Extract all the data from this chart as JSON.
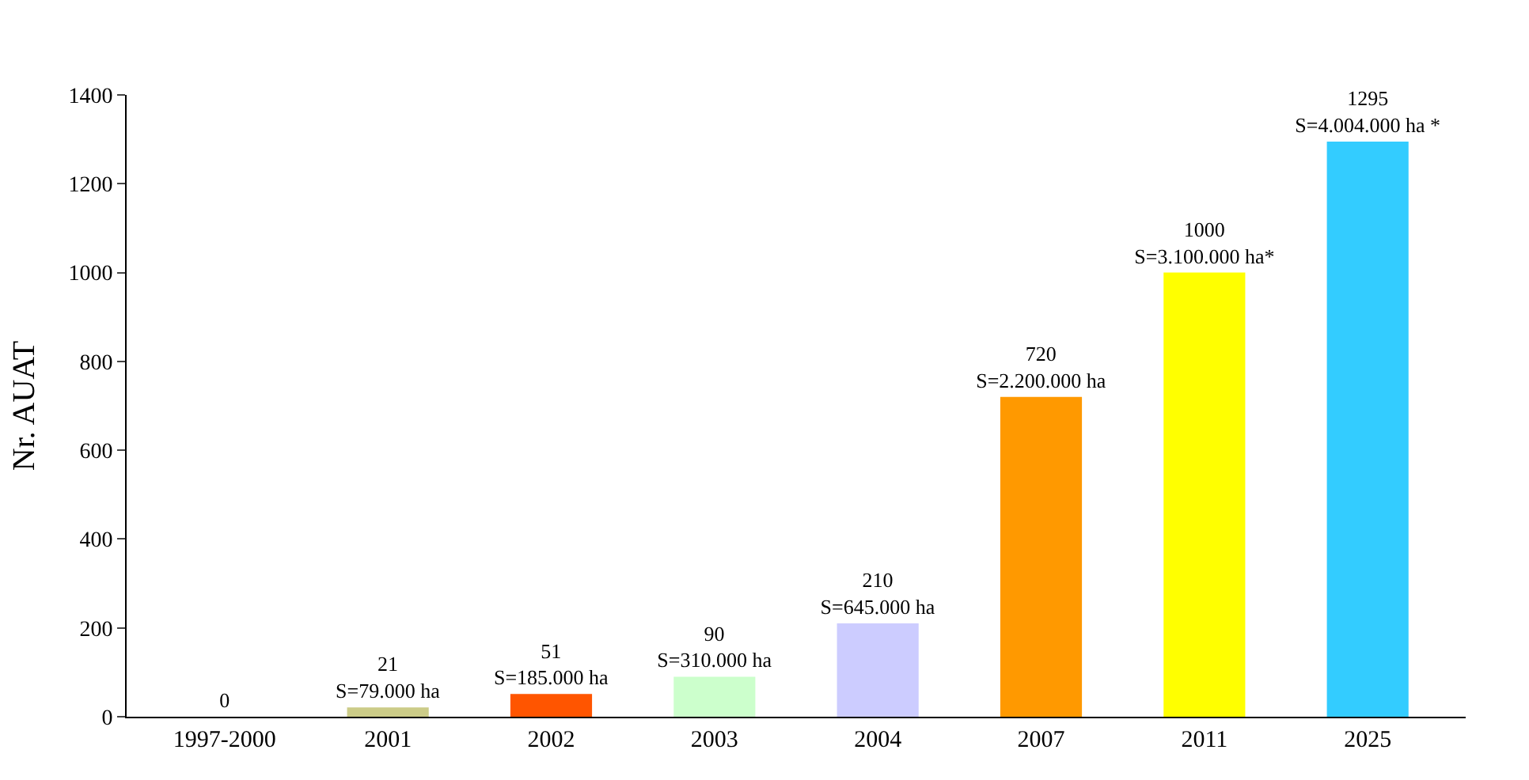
{
  "chart_data": {
    "type": "bar",
    "ylabel": "Nr. AUAT",
    "categories": [
      "1997-2000",
      "2001",
      "2002",
      "2003",
      "2004",
      "2007",
      "2011",
      "2025"
    ],
    "values": [
      0,
      21,
      51,
      90,
      210,
      720,
      1000,
      1295
    ],
    "colors": [
      "#d9d9d9",
      "#cccc88",
      "#ff5500",
      "#ccffcc",
      "#ccccff",
      "#ff9900",
      "#ffff00",
      "#33ccff"
    ],
    "value_labels": [
      "0",
      "21\nS=79.000 ha",
      "51\nS=185.000 ha",
      "90\nS=310.000 ha",
      "210\nS=645.000 ha",
      "720\nS=2.200.000 ha",
      "1000\nS=3.100.000 ha*",
      "1295\nS=4.004.000 ha *"
    ],
    "ylim": [
      0,
      1400
    ],
    "yticks": [
      0,
      200,
      400,
      600,
      800,
      1000,
      1200,
      1400
    ]
  }
}
